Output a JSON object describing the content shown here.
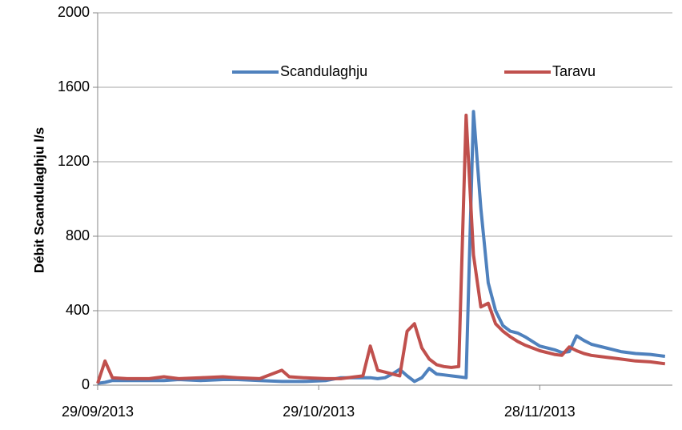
{
  "chart_data": {
    "type": "line",
    "y_label": "Débit  Scandulaghju l/s",
    "x": [
      "29/09/2013",
      "30/09/2013",
      "01/10/2013",
      "03/10/2013",
      "06/10/2013",
      "08/10/2013",
      "10/10/2013",
      "13/10/2013",
      "16/10/2013",
      "18/10/2013",
      "21/10/2013",
      "24/10/2013",
      "25/10/2013",
      "27/10/2013",
      "30/10/2013",
      "01/11/2013",
      "03/11/2013",
      "04/11/2013",
      "05/11/2013",
      "06/11/2013",
      "07/11/2013",
      "08/11/2013",
      "09/11/2013",
      "10/11/2013",
      "11/11/2013",
      "12/11/2013",
      "13/11/2013",
      "14/11/2013",
      "15/11/2013",
      "16/11/2013",
      "17/11/2013",
      "18/11/2013",
      "19/11/2013",
      "20/11/2013",
      "21/11/2013",
      "22/11/2013",
      "23/11/2013",
      "24/11/2013",
      "25/11/2013",
      "26/11/2013",
      "28/11/2013",
      "30/11/2013",
      "01/12/2013",
      "02/12/2013",
      "03/12/2013",
      "04/12/2013",
      "05/12/2013",
      "07/12/2013",
      "09/12/2013",
      "11/12/2013",
      "13/12/2013",
      "15/12/2013"
    ],
    "series": [
      {
        "name": "Scandulaghju",
        "color": "#4f81bd",
        "values": [
          10,
          15,
          25,
          25,
          25,
          25,
          30,
          25,
          30,
          30,
          25,
          20,
          20,
          20,
          25,
          40,
          40,
          40,
          40,
          35,
          40,
          60,
          85,
          50,
          20,
          40,
          90,
          60,
          55,
          50,
          45,
          40,
          1470,
          950,
          550,
          400,
          320,
          290,
          280,
          260,
          210,
          190,
          175,
          180,
          265,
          240,
          220,
          200,
          180,
          170,
          165,
          155
        ]
      },
      {
        "name": "Taravu",
        "color": "#c0504d",
        "values": [
          10,
          130,
          40,
          35,
          35,
          45,
          35,
          40,
          45,
          40,
          35,
          80,
          45,
          40,
          35,
          35,
          45,
          50,
          210,
          80,
          70,
          60,
          50,
          290,
          330,
          200,
          140,
          110,
          100,
          95,
          100,
          1450,
          700,
          420,
          440,
          330,
          290,
          260,
          235,
          215,
          185,
          165,
          160,
          205,
          185,
          170,
          160,
          150,
          140,
          130,
          125,
          115
        ]
      }
    ],
    "xlim": [
      "29/09/2013",
      "16/12/2013"
    ],
    "xticks": [
      "29/09/2013",
      "29/10/2013",
      "28/11/2013"
    ],
    "ylim": [
      0,
      2000
    ],
    "yticks": [
      0,
      400,
      800,
      1200,
      1600,
      2000
    ],
    "grid": true
  }
}
